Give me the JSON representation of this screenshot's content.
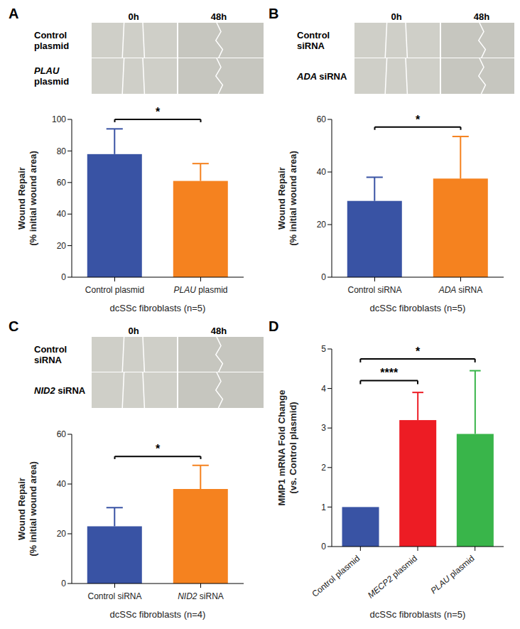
{
  "chart_data": [
    {
      "panel": "A",
      "type": "bar",
      "categories": [
        "Control plasmid",
        "PLAU plasmid"
      ],
      "values": [
        78,
        61
      ],
      "errors": [
        16,
        11
      ],
      "colors": [
        "#3953a4",
        "#f5821f"
      ],
      "y_label": "Wound Repair\n(% initial wound area)",
      "x_label": "dcSSc fibroblasts (n=5)",
      "ylim": [
        0,
        100
      ],
      "yticks": [
        0,
        20,
        40,
        60,
        80,
        100
      ],
      "grid": false,
      "significance": [
        {
          "between": [
            "Control plasmid",
            "PLAU plasmid"
          ],
          "label": "*"
        }
      ]
    },
    {
      "panel": "B",
      "type": "bar",
      "categories": [
        "Control siRNA",
        "ADA siRNA"
      ],
      "values": [
        29,
        37.5
      ],
      "errors": [
        9,
        16
      ],
      "colors": [
        "#3953a4",
        "#f5821f"
      ],
      "y_label": "Wound Repair\n(% initial wound area)",
      "x_label": "dcSSc fibroblasts (n=5)",
      "ylim": [
        0,
        60
      ],
      "yticks": [
        0,
        20,
        40,
        60
      ],
      "grid": false,
      "significance": [
        {
          "between": [
            "Control siRNA",
            "ADA siRNA"
          ],
          "label": "*"
        }
      ]
    },
    {
      "panel": "C",
      "type": "bar",
      "categories": [
        "Control siRNA",
        "NID2 siRNA"
      ],
      "values": [
        23,
        38
      ],
      "errors": [
        7.5,
        9.5
      ],
      "colors": [
        "#3953a4",
        "#f5821f"
      ],
      "y_label": "Wound Repair\n(% initial wound area)",
      "x_label": "dcSSc fibroblasts (n=4)",
      "ylim": [
        0,
        60
      ],
      "yticks": [
        0,
        20,
        40,
        60
      ],
      "grid": false,
      "significance": [
        {
          "between": [
            "Control siRNA",
            "NID2 siRNA"
          ],
          "label": "*"
        }
      ]
    },
    {
      "panel": "D",
      "type": "bar",
      "categories": [
        "Control plasmid",
        "MECP2 plasmid",
        "PLAU plasmid"
      ],
      "values": [
        1,
        3.2,
        2.85
      ],
      "errors": [
        0,
        0.7,
        1.6
      ],
      "colors": [
        "#3953a4",
        "#ed1c24",
        "#39b54a"
      ],
      "y_label": "MMP1 mRNA Fold Change\n(vs. Control plasmid)",
      "x_label": "dcSSc fibroblasts (n=5)",
      "ylim": [
        0,
        5
      ],
      "yticks": [
        0,
        1,
        2,
        3,
        4,
        5
      ],
      "grid": false,
      "significance": [
        {
          "between": [
            "Control plasmid",
            "MECP2 plasmid"
          ],
          "label": "****"
        },
        {
          "between": [
            "Control plasmid",
            "PLAU plasmid"
          ],
          "label": "*"
        }
      ]
    }
  ],
  "micrographs": [
    {
      "panel": "A",
      "columns": [
        "0h",
        "48h"
      ],
      "rows": [
        "Control plasmid",
        "PLAU plasmid"
      ]
    },
    {
      "panel": "B",
      "columns": [
        "0h",
        "48h"
      ],
      "rows": [
        "Control siRNA",
        "ADA siRNA"
      ]
    },
    {
      "panel": "C",
      "columns": [
        "0h",
        "48h"
      ],
      "rows": [
        "Control siRNA",
        "NID2 siRNA"
      ]
    }
  ]
}
